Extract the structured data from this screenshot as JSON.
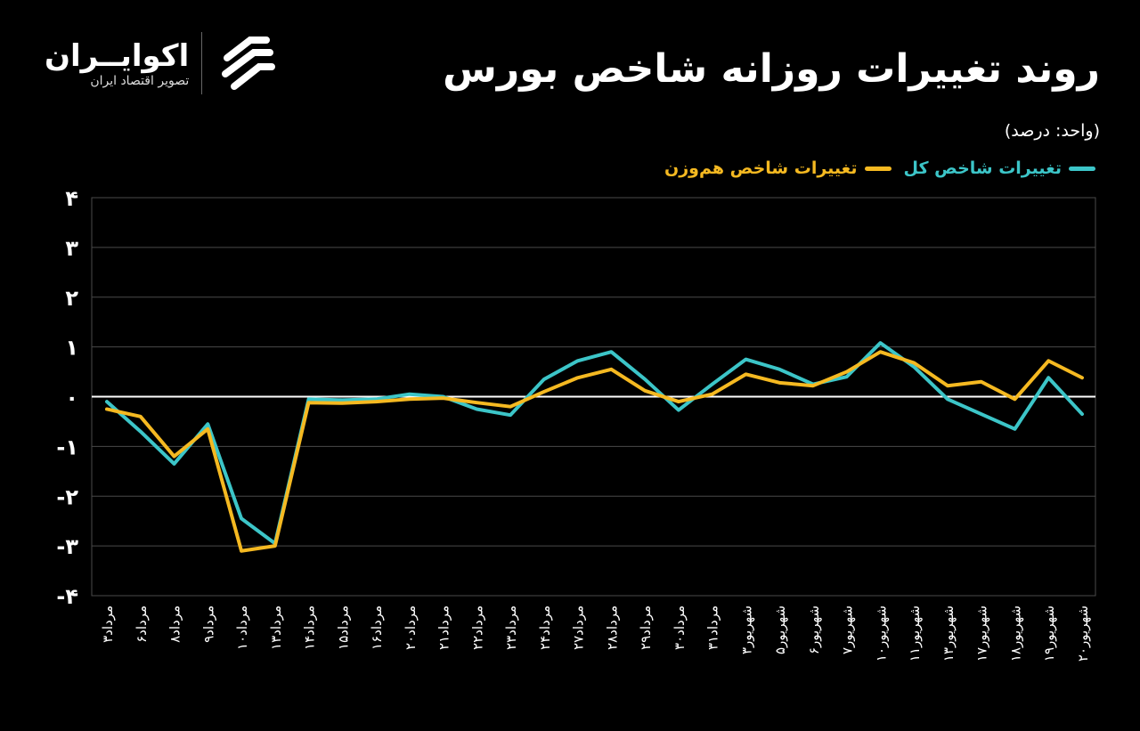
{
  "header": {
    "title": "روند تغییرات روزانه شاخص بورس",
    "unit": "(واحد: درصد)"
  },
  "logo": {
    "name": "اکوایــران",
    "tagline": "تصویر اقتصاد ایران"
  },
  "colors": {
    "total": "#3cc5c8",
    "equal": "#f5b921",
    "background": "#000000",
    "grid": "#4a4a4a"
  },
  "chart_data": {
    "type": "line",
    "title": "روند تغییرات روزانه شاخص بورس",
    "ylabel": "(واحد: درصد)",
    "ylim": [
      -4,
      4
    ],
    "yticks": [
      4,
      3,
      2,
      1,
      0,
      -1,
      -2,
      -3,
      -4
    ],
    "ytick_labels": [
      "۴",
      "۳",
      "۲",
      "۱",
      "۰",
      "-۱",
      "-۲",
      "-۳",
      "-۴"
    ],
    "grid": true,
    "legend": "top-right",
    "categories": [
      "مرداد۳",
      "مرداد۶",
      "مرداد۸",
      "مرداد۹",
      "مرداد۱۰",
      "مرداد۱۳",
      "مرداد۱۴",
      "مرداد۱۵",
      "مرداد۱۶",
      "مرداد۲۰",
      "مرداد۲۱",
      "مرداد۲۲",
      "مرداد۲۳",
      "مرداد۲۴",
      "مرداد۲۷",
      "مرداد۲۸",
      "مرداد۲۹",
      "مرداد۳۰",
      "مرداد۳۱",
      "شهریور۳",
      "شهریور۵",
      "شهریور۶",
      "شهریور۷",
      "شهریور۱۰",
      "شهریور۱۱",
      "شهریور۱۳",
      "شهریور۱۷",
      "شهریور۱۸",
      "شهریور۱۹",
      "شهریور۲۰"
    ],
    "series": [
      {
        "name": "تغییرات شاخص کل",
        "values": [
          -0.1,
          -0.7,
          -1.35,
          -0.55,
          -2.45,
          -2.95,
          -0.05,
          -0.07,
          -0.05,
          0.05,
          0.0,
          -0.25,
          -0.37,
          0.35,
          0.72,
          0.9,
          0.35,
          -0.27,
          0.25,
          0.75,
          0.55,
          0.25,
          0.4,
          1.08,
          0.6,
          -0.05,
          -0.35,
          -0.65,
          0.38,
          -0.35
        ]
      },
      {
        "name": "تغییرات شاخص هم‌وزن",
        "values": [
          -0.25,
          -0.4,
          -1.2,
          -0.65,
          -3.1,
          -3.0,
          -0.12,
          -0.13,
          -0.1,
          -0.05,
          -0.03,
          -0.12,
          -0.2,
          0.1,
          0.38,
          0.55,
          0.12,
          -0.1,
          0.05,
          0.45,
          0.28,
          0.22,
          0.5,
          0.9,
          0.68,
          0.22,
          0.3,
          -0.05,
          0.72,
          0.38
        ]
      }
    ]
  }
}
